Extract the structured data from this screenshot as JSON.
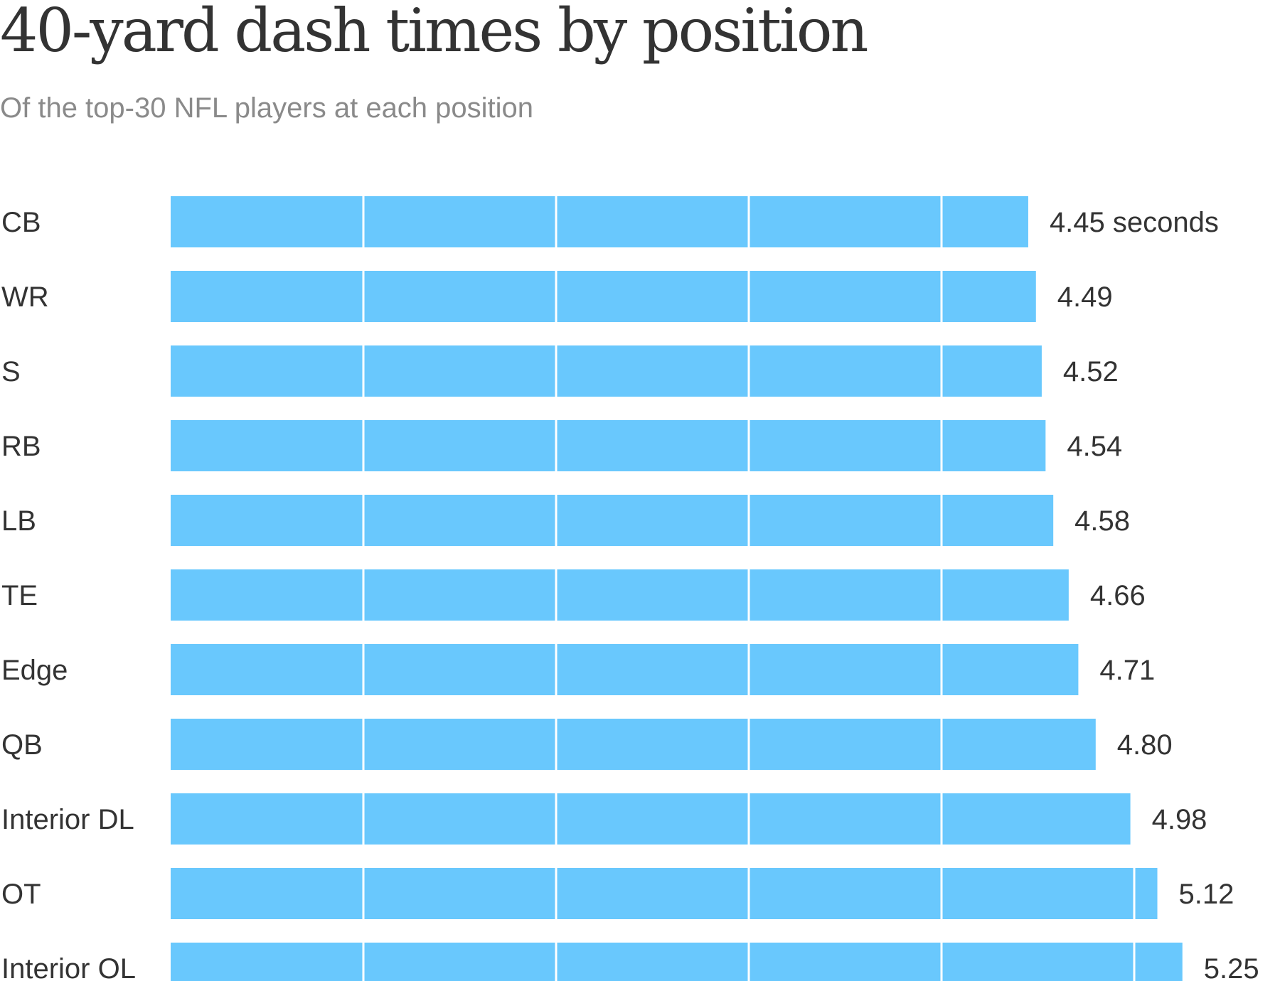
{
  "chart_data": {
    "type": "bar",
    "orientation": "horizontal",
    "title": "40-yard dash times by position",
    "subtitle": "Of the top-30 NFL players at each position",
    "categories": [
      "CB",
      "WR",
      "S",
      "RB",
      "LB",
      "TE",
      "Edge",
      "QB",
      "Interior DL",
      "OT",
      "Interior OL"
    ],
    "values": [
      4.45,
      4.49,
      4.52,
      4.54,
      4.58,
      4.66,
      4.71,
      4.8,
      4.98,
      5.12,
      5.25
    ],
    "value_labels": [
      "4.45 seconds",
      "4.49",
      "4.52",
      "4.54",
      "4.58",
      "4.66",
      "4.71",
      "4.80",
      "4.98",
      "5.12",
      "5.25"
    ],
    "unit": "seconds",
    "xlim": [
      0,
      5.25
    ],
    "gridlines_every": 1,
    "grid": "white lines drawn over bars",
    "bar_color": "#69c8fd",
    "text_color": "#333333",
    "subtitle_color": "#8a8a8a"
  }
}
